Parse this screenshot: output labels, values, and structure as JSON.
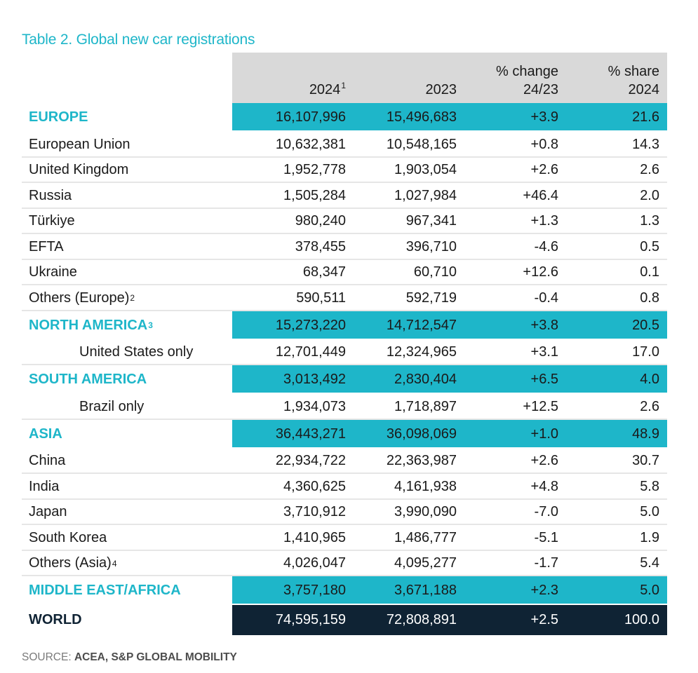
{
  "title": "Table 2. Global new car registrations",
  "headers": {
    "col1": "2024",
    "col1_sup": "1",
    "col2": "2023",
    "col3_line1": "% change",
    "col3_line2": "24/23",
    "col4_line1": "% share",
    "col4_line2": "2024"
  },
  "rows": [
    {
      "type": "region",
      "label": "EUROPE",
      "sup": "",
      "v2024": "16,107,996",
      "v2023": "15,496,683",
      "change": "+3.9",
      "share": "21.6"
    },
    {
      "type": "country",
      "label": "European Union",
      "sup": "",
      "v2024": "10,632,381",
      "v2023": "10,548,165",
      "change": "+0.8",
      "share": "14.3"
    },
    {
      "type": "country",
      "label": "United Kingdom",
      "sup": "",
      "v2024": "1,952,778",
      "v2023": "1,903,054",
      "change": "+2.6",
      "share": "2.6"
    },
    {
      "type": "country",
      "label": "Russia",
      "sup": "",
      "v2024": "1,505,284",
      "v2023": "1,027,984",
      "change": "+46.4",
      "share": "2.0"
    },
    {
      "type": "country",
      "label": "Türkiye",
      "sup": "",
      "v2024": "980,240",
      "v2023": "967,341",
      "change": "+1.3",
      "share": "1.3"
    },
    {
      "type": "country",
      "label": "EFTA",
      "sup": "",
      "v2024": "378,455",
      "v2023": "396,710",
      "change": "-4.6",
      "share": "0.5"
    },
    {
      "type": "country",
      "label": "Ukraine",
      "sup": "",
      "v2024": "68,347",
      "v2023": "60,710",
      "change": "+12.6",
      "share": "0.1"
    },
    {
      "type": "country",
      "label": "Others (Europe)",
      "sup": "2",
      "v2024": "590,511",
      "v2023": "592,719",
      "change": "-0.4",
      "share": "0.8"
    },
    {
      "type": "region",
      "label": "NORTH AMERICA",
      "sup": "3",
      "v2024": "15,273,220",
      "v2023": "14,712,547",
      "change": "+3.8",
      "share": "20.5"
    },
    {
      "type": "indent",
      "label": "United States only",
      "sup": "",
      "v2024": "12,701,449",
      "v2023": "12,324,965",
      "change": "+3.1",
      "share": "17.0"
    },
    {
      "type": "region",
      "label": "SOUTH AMERICA",
      "sup": "",
      "v2024": "3,013,492",
      "v2023": "2,830,404",
      "change": "+6.5",
      "share": "4.0"
    },
    {
      "type": "indent",
      "label": "Brazil only",
      "sup": "",
      "v2024": "1,934,073",
      "v2023": "1,718,897",
      "change": "+12.5",
      "share": "2.6"
    },
    {
      "type": "region",
      "label": "ASIA",
      "sup": "",
      "v2024": "36,443,271",
      "v2023": "36,098,069",
      "change": "+1.0",
      "share": "48.9"
    },
    {
      "type": "country",
      "label": "China",
      "sup": "",
      "v2024": "22,934,722",
      "v2023": "22,363,987",
      "change": "+2.6",
      "share": "30.7"
    },
    {
      "type": "country",
      "label": "India",
      "sup": "",
      "v2024": "4,360,625",
      "v2023": "4,161,938",
      "change": "+4.8",
      "share": "5.8"
    },
    {
      "type": "country",
      "label": "Japan",
      "sup": "",
      "v2024": "3,710,912",
      "v2023": "3,990,090",
      "change": "-7.0",
      "share": "5.0"
    },
    {
      "type": "country",
      "label": "South Korea",
      "sup": "",
      "v2024": "1,410,965",
      "v2023": "1,486,777",
      "change": "-5.1",
      "share": "1.9"
    },
    {
      "type": "country",
      "label": "Others (Asia)",
      "sup": "4",
      "v2024": "4,026,047",
      "v2023": "4,095,277",
      "change": "-1.7",
      "share": "5.4"
    },
    {
      "type": "region",
      "label": "MIDDLE EAST/AFRICA",
      "sup": "",
      "v2024": "3,757,180",
      "v2023": "3,671,188",
      "change": "+2.3",
      "share": "5.0"
    },
    {
      "type": "world",
      "label": "WORLD",
      "sup": "",
      "v2024": "74,595,159",
      "v2023": "72,808,891",
      "change": "+2.5",
      "share": "100.0"
    }
  ],
  "source": {
    "prefix": "SOURCE: ",
    "text": "ACEA, S&P GLOBAL MOBILITY"
  },
  "colors": {
    "accent": "#1eb6c9",
    "world_bg": "#0f2334",
    "header_bg": "#d9d9d9"
  }
}
